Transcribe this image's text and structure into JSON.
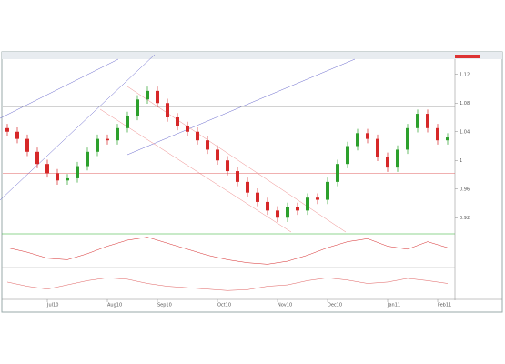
{
  "chart_data": {
    "type": "candlestick",
    "open": [
      1.045,
      1.04,
      1.03,
      1.012,
      0.995,
      0.982,
      0.972,
      0.975,
      0.992,
      1.012,
      1.03,
      1.028,
      1.045,
      1.062,
      1.085,
      1.097,
      1.08,
      1.06,
      1.048,
      1.04,
      1.028,
      1.015,
      1.0,
      0.985,
      0.97,
      0.955,
      0.942,
      0.93,
      0.92,
      0.935,
      0.93,
      0.948,
      0.945,
      0.97,
      0.995,
      1.02,
      1.038,
      1.03,
      1.005,
      0.99,
      1.015,
      1.045,
      1.065,
      1.045,
      1.028
    ],
    "high": [
      1.051,
      1.046,
      1.036,
      1.018,
      1.001,
      0.988,
      0.981,
      0.998,
      1.018,
      1.036,
      1.036,
      1.051,
      1.068,
      1.091,
      1.103,
      1.103,
      1.086,
      1.066,
      1.054,
      1.046,
      1.034,
      1.021,
      1.006,
      0.991,
      0.976,
      0.961,
      0.948,
      0.936,
      0.941,
      0.941,
      0.954,
      0.954,
      0.976,
      1.001,
      1.026,
      1.044,
      1.044,
      1.036,
      1.011,
      1.021,
      1.051,
      1.071,
      1.071,
      1.051,
      1.038
    ],
    "low": [
      1.034,
      1.024,
      1.006,
      0.989,
      0.976,
      0.966,
      0.966,
      0.969,
      0.986,
      1.006,
      1.022,
      1.022,
      1.039,
      1.056,
      1.079,
      1.074,
      1.054,
      1.042,
      1.034,
      1.022,
      1.009,
      0.994,
      0.979,
      0.964,
      0.949,
      0.936,
      0.924,
      0.914,
      0.914,
      0.924,
      0.924,
      0.939,
      0.939,
      0.964,
      0.989,
      1.014,
      1.024,
      0.999,
      0.984,
      0.984,
      1.009,
      1.039,
      1.039,
      1.022,
      1.022
    ],
    "close": [
      1.04,
      1.03,
      1.012,
      0.995,
      0.982,
      0.972,
      0.975,
      0.992,
      1.012,
      1.03,
      1.028,
      1.045,
      1.062,
      1.085,
      1.097,
      1.08,
      1.06,
      1.048,
      1.04,
      1.028,
      1.015,
      1.0,
      0.985,
      0.97,
      0.955,
      0.942,
      0.93,
      0.92,
      0.935,
      0.93,
      0.948,
      0.945,
      0.97,
      0.995,
      1.02,
      1.038,
      1.03,
      1.005,
      0.99,
      1.015,
      1.045,
      1.065,
      1.045,
      1.028,
      1.032
    ],
    "up_color": "#2ca02c",
    "down_color": "#d62728",
    "ylim": [
      0.9,
      1.14
    ],
    "yticks": [
      0.92,
      0.96,
      1.0,
      1.04,
      1.08,
      1.12
    ],
    "xticks": [
      {
        "value": 4,
        "label": "Jul10"
      },
      {
        "value": 10,
        "label": "Aug10"
      },
      {
        "value": 15,
        "label": "Sep10"
      },
      {
        "value": 21,
        "label": "Oct10"
      },
      {
        "value": 27,
        "label": "Nov10"
      },
      {
        "value": 32,
        "label": "Dec10"
      },
      {
        "value": 38,
        "label": "Jan11"
      },
      {
        "value": 43,
        "label": "Feb11"
      }
    ],
    "levels": [
      {
        "value": 1.075,
        "color": "#999999"
      },
      {
        "value": 0.982,
        "color": "#e06060"
      }
    ],
    "indicators": [
      {
        "color": "#d62728",
        "ylim": [
          -1,
          1
        ],
        "values": [
          0.2,
          -0.1,
          -0.5,
          -0.6,
          -0.2,
          0.3,
          0.7,
          0.9,
          0.5,
          0.1,
          -0.3,
          -0.6,
          -0.8,
          -0.9,
          -0.7,
          -0.3,
          0.2,
          0.6,
          0.8,
          0.3,
          0.1,
          0.6,
          0.2
        ]
      },
      {
        "color": "#e06060",
        "ylim": [
          0,
          100
        ],
        "values": [
          55,
          40,
          30,
          45,
          60,
          70,
          65,
          50,
          40,
          35,
          30,
          25,
          28,
          40,
          45,
          60,
          70,
          62,
          50,
          55,
          68,
          60,
          50
        ]
      }
    ]
  }
}
